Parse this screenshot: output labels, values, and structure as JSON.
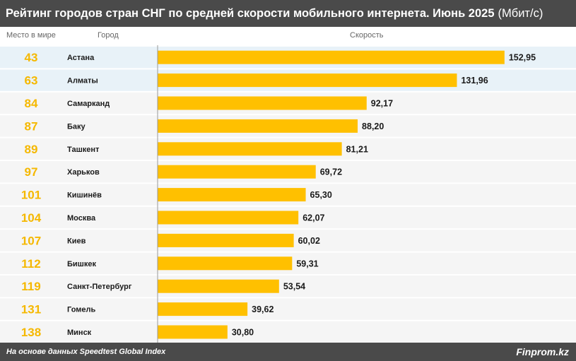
{
  "header": {
    "title": "Рейтинг городов стран СНГ по средней скорости мобильного интернета. Июнь 2025",
    "unit": "(Мбит/с)"
  },
  "columns": {
    "rank": "Место в мире",
    "city": "Город",
    "speed": "Скорость"
  },
  "footer": {
    "source": "На основе данных Speedtest Global Index",
    "brand": "Finprom.kz"
  },
  "colors": {
    "bar": "#ffc000",
    "rank": "#f5b800",
    "row_highlight": "#e8f2f8",
    "row_normal": "#f5f5f5",
    "header_bg": "#4a4a4a"
  },
  "chart_data": {
    "type": "bar",
    "orientation": "horizontal",
    "title": "Рейтинг городов стран СНГ по средней скорости мобильного интернета. Июнь 2025 (Мбит/с)",
    "categories": [
      "Астана",
      "Алматы",
      "Самарканд",
      "Баку",
      "Ташкент",
      "Харьков",
      "Кишинёв",
      "Москва",
      "Киев",
      "Бишкек",
      "Санкт-Петербург",
      "Гомель",
      "Минск"
    ],
    "ranks": [
      43,
      63,
      84,
      87,
      89,
      97,
      101,
      104,
      107,
      112,
      119,
      131,
      138
    ],
    "values": [
      152.95,
      131.96,
      92.17,
      88.2,
      81.21,
      69.72,
      65.3,
      62.07,
      60.02,
      59.31,
      53.54,
      39.62,
      30.8
    ],
    "value_labels": [
      "152,95",
      "131,96",
      "92,17",
      "88,20",
      "81,21",
      "69,72",
      "65,30",
      "62,07",
      "60,02",
      "59,31",
      "53,54",
      "39,62",
      "30,80"
    ],
    "highlighted": [
      "Астана",
      "Алматы"
    ],
    "xlim": [
      0,
      153
    ],
    "grid": false,
    "legend": "none"
  }
}
